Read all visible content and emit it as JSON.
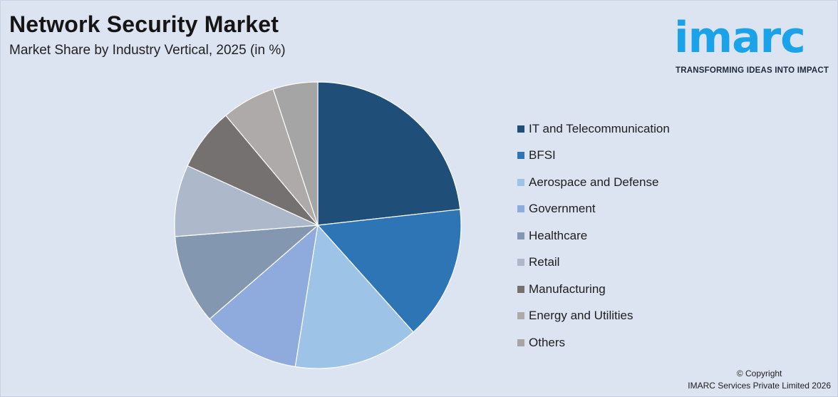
{
  "header": {
    "title": "Network Security Market",
    "subtitle": "Market Share by Industry Vertical, 2025 (in %)"
  },
  "logo": {
    "word": "imarc",
    "tagline": "TRANSFORMING IDEAS INTO IMPACT",
    "color": "#1aa3e8"
  },
  "footer": {
    "line1": "© Copyright",
    "line2": "IMARC Services Private Limited 2026"
  },
  "chart_data": {
    "type": "pie",
    "title": "Network Security Market",
    "subtitle": "Market Share by Industry Vertical, 2025 (in %)",
    "legend_position": "right",
    "categories": [
      "IT and Telecommunication",
      "BFSI",
      "Aerospace and Defense",
      "Government",
      "Healthcare",
      "Retail",
      "Manufacturing",
      "Energy and Utilities",
      "Others"
    ],
    "values": [
      23,
      15,
      14,
      11,
      10,
      8,
      7,
      6,
      5
    ],
    "colors": [
      "#1f4e79",
      "#2e75b6",
      "#9dc3e6",
      "#8faadc",
      "#8497b0",
      "#adb9ca",
      "#767171",
      "#aeaaaa",
      "#a5a5a5"
    ]
  }
}
